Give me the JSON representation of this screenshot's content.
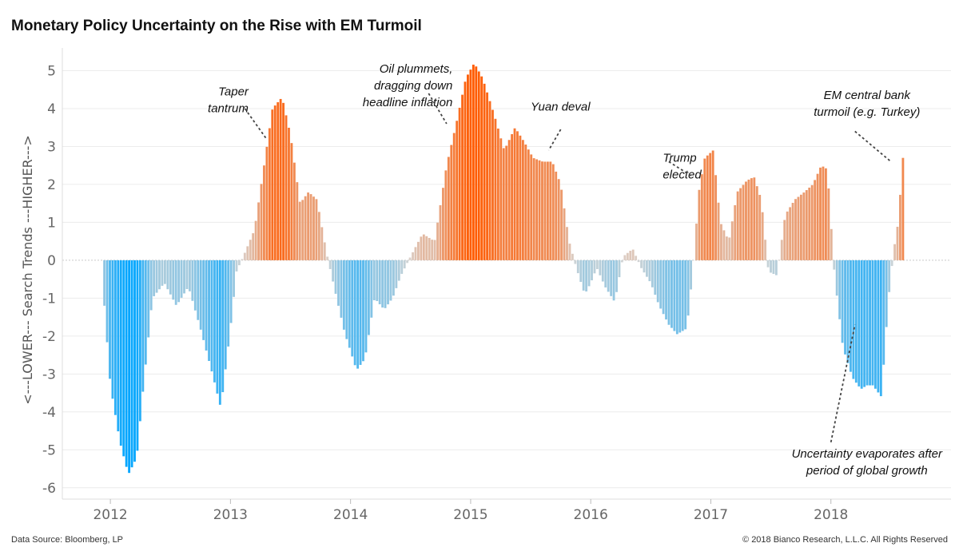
{
  "chart_data": {
    "type": "bar",
    "title": "Monetary Policy Uncertainty on the Rise with EM Turmoil",
    "ylabel": "<---LOWER--- Search Trends ---HIGHER--->",
    "ylim": [
      -6.3,
      5.6
    ],
    "y_ticks": [
      "5",
      "4",
      "3",
      "2",
      "1",
      "0",
      "-1",
      "-2",
      "-3",
      "-4",
      "-5",
      "-6"
    ],
    "y_tick_values": [
      5,
      4,
      3,
      2,
      1,
      0,
      -1,
      -2,
      -3,
      -4,
      -5,
      -6
    ],
    "x_ticks": [
      "2012",
      "2013",
      "2014",
      "2015",
      "2016",
      "2017",
      "2018"
    ],
    "x_tick_values": [
      2012,
      2013,
      2014,
      2015,
      2016,
      2017,
      2018
    ],
    "xlim": [
      2011.6,
      2019.0
    ],
    "grid": true,
    "colors": {
      "positive": "#ff5a00",
      "negative": "#00a5ff",
      "neutral": "#d9d6d3"
    },
    "x": [
      2011.95,
      2012.0,
      2012.08,
      2012.15,
      2012.22,
      2012.27,
      2012.35,
      2012.45,
      2012.55,
      2012.65,
      2012.75,
      2012.85,
      2012.92,
      2013.0,
      2013.05,
      2013.12,
      2013.2,
      2013.28,
      2013.35,
      2013.43,
      2013.5,
      2013.58,
      2013.65,
      2013.72,
      2013.8,
      2013.87,
      2013.95,
      2014.05,
      2014.12,
      2014.2,
      2014.28,
      2014.35,
      2014.42,
      2014.5,
      2014.6,
      2014.7,
      2014.8,
      2014.88,
      2014.96,
      2015.03,
      2015.1,
      2015.2,
      2015.28,
      2015.37,
      2015.45,
      2015.52,
      2015.6,
      2015.68,
      2015.75,
      2015.82,
      2015.88,
      2015.95,
      2016.0,
      2016.05,
      2016.12,
      2016.2,
      2016.27,
      2016.35,
      2016.42,
      2016.5,
      2016.57,
      2016.65,
      2016.72,
      2016.8,
      2016.85,
      2016.9,
      2016.95,
      2017.02,
      2017.08,
      2017.15,
      2017.22,
      2017.3,
      2017.36,
      2017.42,
      2017.48,
      2017.55,
      2017.62,
      2017.7,
      2017.78,
      2017.85,
      2017.92,
      2017.97,
      2018.03,
      2018.1,
      2018.18,
      2018.25,
      2018.3,
      2018.35,
      2018.42,
      2018.48,
      2018.52,
      2018.56,
      2018.6
    ],
    "values": [
      -1.2,
      -3.3,
      -4.8,
      -5.65,
      -5.2,
      -3.5,
      -1.0,
      -0.6,
      -1.2,
      -0.7,
      -1.8,
      -3.0,
      -3.9,
      -1.8,
      -0.3,
      0.2,
      0.8,
      2.5,
      4.0,
      4.3,
      3.3,
      1.5,
      1.8,
      1.6,
      0.2,
      -0.8,
      -1.9,
      -2.9,
      -2.6,
      -1.0,
      -1.3,
      -1.0,
      -0.4,
      0.1,
      0.7,
      0.5,
      2.5,
      3.6,
      4.8,
      5.2,
      4.8,
      3.8,
      2.9,
      3.5,
      3.1,
      2.7,
      2.6,
      2.6,
      2.0,
      0.5,
      -0.2,
      -0.9,
      -0.6,
      -0.2,
      -0.7,
      -1.1,
      0.1,
      0.3,
      -0.2,
      -0.6,
      -1.2,
      -1.7,
      -1.95,
      -1.8,
      -0.3,
      1.8,
      2.7,
      2.9,
      1.0,
      0.5,
      1.8,
      2.1,
      2.2,
      1.6,
      -0.3,
      -0.4,
      1.2,
      1.6,
      1.8,
      2.0,
      2.5,
      2.4,
      -0.4,
      -2.3,
      -3.1,
      -3.4,
      -3.3,
      -3.3,
      -3.6,
      -1.0,
      0.2,
      1.0,
      2.7
    ],
    "annotations": [
      {
        "lines": [
          "Taper",
          "tantrum"
        ],
        "x": 2013.15,
        "y": 4.35,
        "align": "end",
        "arrow_from": [
          2013.12,
          4.0
        ],
        "arrow_to": [
          2013.3,
          3.2
        ]
      },
      {
        "lines": [
          "Oil plummets,",
          "dragging down",
          "headline inflation"
        ],
        "x": 2014.85,
        "y": 4.95,
        "align": "end",
        "arrow_from": [
          2014.65,
          4.4
        ],
        "arrow_to": [
          2014.8,
          3.6
        ]
      },
      {
        "lines": [
          "Yuan deval"
        ],
        "x": 2015.5,
        "y": 3.95,
        "align": "start",
        "arrow_from": [
          2015.75,
          3.45
        ],
        "arrow_to": [
          2015.65,
          2.9
        ]
      },
      {
        "lines": [
          "Trump",
          "elected"
        ],
        "x": 2016.6,
        "y": 2.6,
        "align": "start",
        "arrow_from": [
          2016.65,
          2.6
        ],
        "arrow_to": [
          2016.85,
          2.2
        ]
      },
      {
        "lines": [
          "EM central bank",
          "turmoil (e.g. Turkey)"
        ],
        "x": 2018.3,
        "y": 4.25,
        "align": "middle",
        "arrow_from": [
          2018.2,
          3.4
        ],
        "arrow_to": [
          2018.5,
          2.6
        ]
      },
      {
        "lines": [
          "Uncertainty evaporates after",
          "period of global growth"
        ],
        "x": 2018.3,
        "y": -5.2,
        "align": "middle",
        "arrow_from": [
          2018.0,
          -4.8
        ],
        "arrow_to": [
          2018.2,
          -1.7
        ]
      }
    ]
  },
  "footer": {
    "source": "Data Source: Bloomberg, LP",
    "copyright": "© 2018 Bianco Research, L.L.C. All Rights Reserved"
  }
}
